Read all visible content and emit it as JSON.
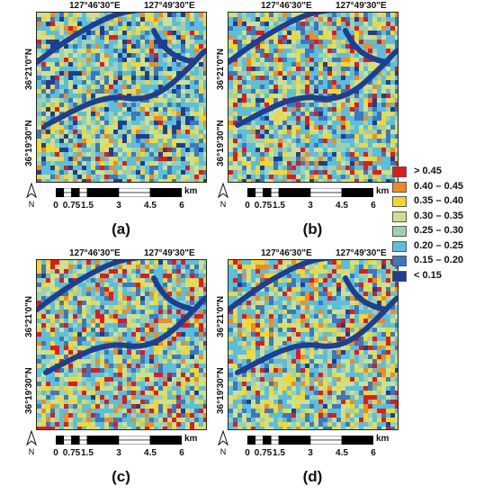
{
  "panels": [
    {
      "id": "a",
      "label": "(a)",
      "lon_labels": [
        "127°46'30\"E",
        "127°49'30\"E"
      ],
      "lat_labels": [
        "36°21'0\"N",
        "36°19'30\"N"
      ],
      "seed": 11,
      "blue_bias": 0.0
    },
    {
      "id": "b",
      "label": "(b)",
      "lon_labels": [
        "127°46'30\"E",
        "127°49'30\"E"
      ],
      "lat_labels": [
        "36°21'0\"N",
        "36°19'30\"N"
      ],
      "seed": 23,
      "blue_bias": 0.03
    },
    {
      "id": "c",
      "label": "(c)",
      "lon_labels": [
        "127°46'30\"E",
        "127°49'30\"E"
      ],
      "lat_labels": [
        "36°21'0\"N",
        "36°19'30\"N"
      ],
      "seed": 37,
      "blue_bias": 0.07
    },
    {
      "id": "d",
      "label": "(d)",
      "lon_labels": [
        "127°46'30\"E",
        "127°49'30\"E"
      ],
      "lat_labels": [
        "36°21'0\"N",
        "36°19'30\"N"
      ],
      "seed": 53,
      "blue_bias": 0.06
    }
  ],
  "scale": {
    "unit": "km",
    "ticks": [
      {
        "label": "0",
        "value": 0
      },
      {
        "label": "0.75",
        "value": 0.75
      },
      {
        "label": "1.5",
        "value": 1.5
      },
      {
        "label": "3",
        "value": 3
      },
      {
        "label": "4.5",
        "value": 4.5
      },
      {
        "label": "6",
        "value": 6
      }
    ],
    "segments": [
      0,
      0.375,
      0.75,
      1.125,
      1.5,
      3,
      4.5,
      6
    ]
  },
  "north_label": "N",
  "legend": [
    {
      "label": "> 0.45",
      "color": "#e31a1c"
    },
    {
      "label": "0.40 – 0.45",
      "color": "#f08b1e"
    },
    {
      "label": "0.35 – 0.40",
      "color": "#f2d72c"
    },
    {
      "label": "0.30 – 0.35",
      "color": "#cfe08a"
    },
    {
      "label": "0.25 – 0.30",
      "color": "#9ed0b0"
    },
    {
      "label": "0.20 – 0.25",
      "color": "#5bbfdc"
    },
    {
      "label": "0.15 – 0.20",
      "color": "#3a78c0"
    },
    {
      "label": "< 0.15",
      "color": "#1c3f94"
    }
  ]
}
